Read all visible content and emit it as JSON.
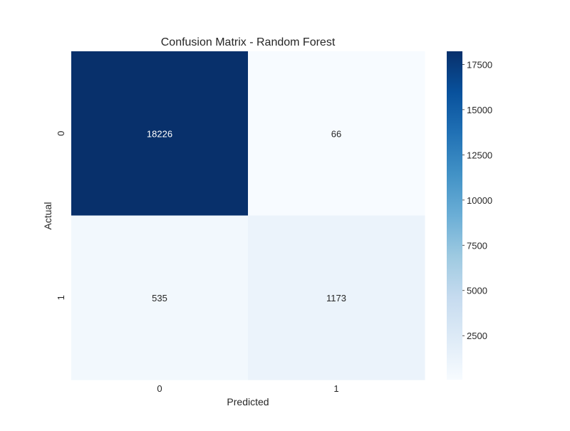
{
  "chart_data": {
    "type": "heatmap",
    "title": "Confusion Matrix - Random Forest",
    "xlabel": "Predicted",
    "ylabel": "Actual",
    "x_categories": [
      "0",
      "1"
    ],
    "y_categories": [
      "0",
      "1"
    ],
    "matrix": [
      [
        18226,
        66
      ],
      [
        535,
        1173
      ]
    ],
    "colormap": "Blues",
    "colorbar": {
      "min": 66,
      "max": 18226,
      "ticks": [
        2500,
        5000,
        7500,
        10000,
        12500,
        15000,
        17500
      ]
    },
    "colors": {
      "low": "#f7fbff",
      "high": "#08306b",
      "dark_text": "#262626",
      "light_text": "#ffffff"
    }
  }
}
